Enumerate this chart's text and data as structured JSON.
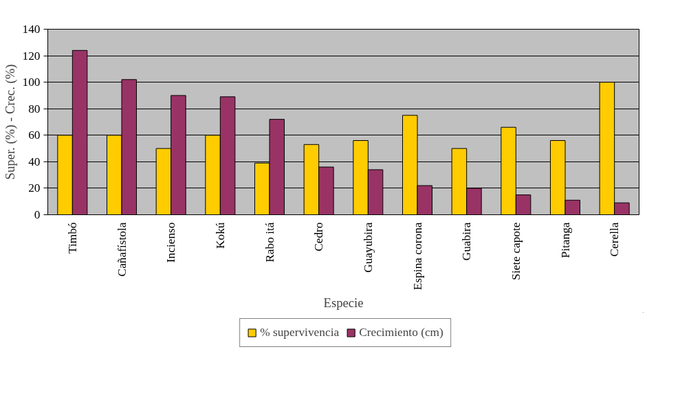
{
  "chart_data": {
    "type": "bar",
    "xlabel": "Especie",
    "ylabel": "Super. (%) - Crec. (%)",
    "categories": [
      "Timbó",
      "Cañafístola",
      "Incienso",
      "Kokú",
      "Rabo itá",
      "Cedro",
      "Guayubira",
      "Espina corona",
      "Guabira",
      "Siete capote",
      "Pitanga",
      "Cerella"
    ],
    "series": [
      {
        "name": "% supervivencia",
        "color": "#ffcc00",
        "values": [
          60,
          60,
          50,
          60,
          39,
          53,
          56,
          75,
          50,
          66,
          56,
          100
        ]
      },
      {
        "name": "Crecimiento (cm)",
        "color": "#993366",
        "values": [
          124,
          102,
          90,
          89,
          72,
          36,
          34,
          22,
          20,
          15,
          11,
          9
        ]
      }
    ],
    "ylim": [
      0,
      140
    ],
    "yticks": [
      0,
      20,
      40,
      60,
      80,
      100,
      120,
      140
    ],
    "grid": "y",
    "legend": "bottom"
  }
}
